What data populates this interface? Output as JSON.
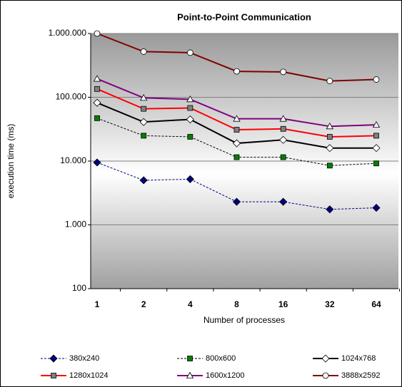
{
  "chart_data": {
    "type": "line",
    "title": "Point-to-Point Communication",
    "x_label": "Number of processes",
    "y_label": "execution time (ms)",
    "categories": [
      "1",
      "2",
      "4",
      "8",
      "16",
      "32",
      "64"
    ],
    "log_y": true,
    "grid": true,
    "ylim": [
      100,
      1000000
    ],
    "yticks": [
      100,
      {
        "value": 1000,
        "label": "1.000"
      },
      {
        "value": 10000,
        "label": "10.000"
      },
      {
        "value": 100000,
        "label": "100.000"
      },
      {
        "value": 1000000,
        "label": "1.000.000"
      }
    ],
    "legend": "bottom",
    "series": [
      {
        "name": "380x240",
        "color": "#000080",
        "dash": true,
        "marker": "diamond",
        "marker_fill": "#000080",
        "values": [
          9500,
          5000,
          5200,
          2300,
          2300,
          1750,
          1850
        ]
      },
      {
        "name": "800x600",
        "color": "#000000",
        "dash": true,
        "marker": "square",
        "marker_fill": "#008000",
        "values": [
          47000,
          25000,
          24000,
          11500,
          11500,
          8500,
          9200
        ]
      },
      {
        "name": "1024x768",
        "color": "#000000",
        "dash": false,
        "marker": "diamond",
        "marker_fill": "#ffffff",
        "values": [
          82000,
          41000,
          45000,
          19000,
          21500,
          16000,
          16000
        ]
      },
      {
        "name": "1280x1024",
        "color": "#ff0000",
        "dash": false,
        "marker": "square",
        "marker_fill": "#808080",
        "values": [
          135000,
          66000,
          68000,
          31000,
          32000,
          24000,
          25000
        ]
      },
      {
        "name": "1600x1200",
        "color": "#800080",
        "dash": false,
        "marker": "triangle",
        "marker_fill": "#ffffff",
        "values": [
          195000,
          98000,
          93000,
          46000,
          46000,
          35000,
          37000
        ]
      },
      {
        "name": "3888x2592",
        "color": "#800000",
        "dash": false,
        "marker": "circle",
        "marker_fill": "#ffffff",
        "values": [
          1000000,
          520000,
          500000,
          255000,
          250000,
          180000,
          190000
        ]
      }
    ]
  }
}
